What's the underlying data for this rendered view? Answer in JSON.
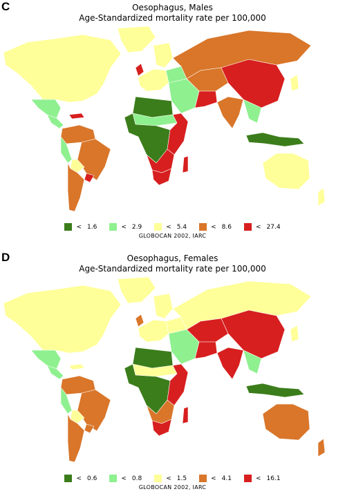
{
  "colors": {
    "dark_green": "#3b7d1b",
    "light_green": "#8ff08f",
    "yellow": "#ffff99",
    "orange": "#d9762a",
    "red": "#d71f1f"
  },
  "panels": [
    {
      "letter": "C",
      "title_line1": "Oesophagus, Males",
      "title_line2": "Age-Standardized mortality rate per 100,000",
      "legend": [
        {
          "symbol": "<",
          "value": "1.6",
          "color_key": "dark_green"
        },
        {
          "symbol": "<",
          "value": "2.9",
          "color_key": "light_green"
        },
        {
          "symbol": "<",
          "value": "5.4",
          "color_key": "yellow"
        },
        {
          "symbol": "<",
          "value": "8.6",
          "color_key": "orange"
        },
        {
          "symbol": "<",
          "value": "27.4",
          "color_key": "red"
        }
      ],
      "source": "GLOBOCAN 2002, IARC",
      "regions": {
        "north_america": "yellow",
        "greenland": "yellow",
        "mexico": "light_green",
        "central_america": "light_green",
        "caribbean": "red",
        "south_america_north": "orange",
        "andes": "light_green",
        "brazil": "orange",
        "bolivia": "yellow",
        "southern_cone": "orange",
        "uruguay_south_brazil": "red",
        "scandinavia": "yellow",
        "uk": "red",
        "western_europe": "yellow",
        "eastern_europe": "light_green",
        "russia": "orange",
        "central_asia": "orange",
        "middle_east": "light_green",
        "iran": "red",
        "south_asia": "orange",
        "china_mongolia": "red",
        "japan": "yellow",
        "southeast_asia": "light_green",
        "indonesia": "dark_green",
        "north_africa": "dark_green",
        "sahel": "light_green",
        "west_central_africa": "dark_green",
        "east_africa": "red",
        "southern_africa": "red",
        "south_africa_south": "red",
        "madagascar": "red",
        "australia": "yellow",
        "new_zealand": "yellow"
      }
    },
    {
      "letter": "D",
      "title_line1": "Oesophagus, Females",
      "title_line2": "Age-Standardized mortality rate per 100,000",
      "legend": [
        {
          "symbol": "<",
          "value": "0.6",
          "color_key": "dark_green"
        },
        {
          "symbol": "<",
          "value": "0.8",
          "color_key": "light_green"
        },
        {
          "symbol": "<",
          "value": "1.5",
          "color_key": "yellow"
        },
        {
          "symbol": "<",
          "value": "4.1",
          "color_key": "orange"
        },
        {
          "symbol": "<",
          "value": "16.1",
          "color_key": "red"
        }
      ],
      "source": "GLOBOCAN 2002, IARC",
      "regions": {
        "north_america": "yellow",
        "greenland": "yellow",
        "mexico": "light_green",
        "central_america": "light_green",
        "caribbean": "yellow",
        "south_america_north": "orange",
        "andes": "light_green",
        "brazil": "orange",
        "bolivia": "yellow",
        "southern_cone": "orange",
        "uruguay_south_brazil": "orange",
        "scandinavia": "yellow",
        "uk": "orange",
        "western_europe": "yellow",
        "eastern_europe": "yellow",
        "russia": "yellow",
        "central_asia": "red",
        "middle_east": "light_green",
        "iran": "red",
        "south_asia": "red",
        "china_mongolia": "red",
        "japan": "yellow",
        "southeast_asia": "light_green",
        "indonesia": "dark_green",
        "north_africa": "dark_green",
        "sahel": "yellow",
        "west_central_africa": "dark_green",
        "east_africa": "red",
        "southern_africa": "orange",
        "south_africa_south": "red",
        "madagascar": "red",
        "australia": "orange",
        "new_zealand": "orange"
      }
    }
  ]
}
